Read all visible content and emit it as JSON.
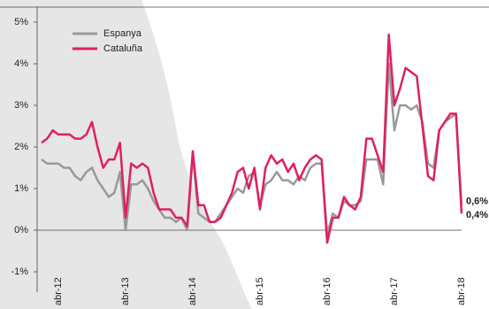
{
  "chart_data": {
    "type": "line",
    "categories": [
      null,
      null,
      null,
      "abr-12",
      null,
      null,
      null,
      null,
      null,
      null,
      null,
      null,
      null,
      null,
      null,
      "abr-13",
      null,
      null,
      null,
      null,
      null,
      null,
      null,
      null,
      null,
      null,
      null,
      "abr-14",
      null,
      null,
      null,
      null,
      null,
      null,
      null,
      null,
      null,
      null,
      null,
      "abr-15",
      null,
      null,
      null,
      null,
      null,
      null,
      null,
      null,
      null,
      null,
      null,
      "abr-16",
      null,
      null,
      null,
      null,
      null,
      null,
      null,
      null,
      null,
      null,
      null,
      "abr-17",
      null,
      null,
      null,
      null,
      null,
      null,
      null,
      null,
      null,
      null,
      null,
      "abr-18"
    ],
    "series": [
      {
        "name": "Espanya",
        "color": "#999999",
        "values": [
          1.7,
          1.6,
          1.6,
          1.6,
          1.5,
          1.5,
          1.3,
          1.2,
          1.4,
          1.5,
          1.2,
          1.0,
          0.8,
          0.9,
          1.4,
          0.0,
          1.1,
          1.1,
          1.2,
          1.0,
          0.7,
          0.5,
          0.3,
          0.3,
          0.2,
          0.3,
          0.0,
          1.8,
          0.4,
          0.3,
          0.2,
          0.2,
          0.4,
          0.6,
          0.8,
          1.0,
          0.9,
          1.3,
          1.4,
          0.6,
          1.1,
          1.2,
          1.4,
          1.2,
          1.2,
          1.1,
          1.3,
          1.2,
          1.5,
          1.6,
          1.6,
          -0.1,
          0.4,
          0.3,
          0.7,
          0.6,
          0.6,
          0.7,
          1.7,
          1.7,
          1.7,
          1.1,
          4.0,
          2.4,
          3.0,
          3.0,
          2.9,
          3.0,
          2.6,
          1.6,
          1.5,
          2.4,
          2.6,
          2.7,
          2.8,
          0.6
        ],
        "value_labels": [
          null,
          null,
          null,
          null,
          null,
          null,
          null,
          null,
          null,
          null,
          null,
          null,
          null,
          null,
          null,
          null,
          null,
          null,
          null,
          null,
          null,
          null,
          null,
          null,
          null,
          null,
          null,
          null,
          null,
          null,
          null,
          null,
          null,
          null,
          null,
          null,
          null,
          null,
          null,
          null,
          null,
          null,
          null,
          null,
          null,
          null,
          null,
          null,
          null,
          null,
          null,
          null,
          null,
          null,
          null,
          null,
          null,
          null,
          null,
          null,
          null,
          null,
          null,
          null,
          null,
          null,
          null,
          null,
          null,
          null,
          null,
          null,
          null,
          null,
          null,
          "0,6%"
        ]
      },
      {
        "name": "Cataluña",
        "color": "#e0205e",
        "values": [
          2.1,
          2.2,
          2.4,
          2.3,
          2.3,
          2.3,
          2.2,
          2.2,
          2.3,
          2.6,
          2.0,
          1.5,
          1.7,
          1.7,
          2.1,
          0.3,
          1.6,
          1.5,
          1.6,
          1.5,
          0.9,
          0.5,
          0.5,
          0.5,
          0.3,
          0.3,
          0.1,
          1.9,
          0.6,
          0.6,
          0.2,
          0.2,
          0.3,
          0.6,
          0.9,
          1.4,
          1.5,
          1.0,
          1.5,
          0.5,
          1.5,
          1.8,
          1.6,
          1.7,
          1.4,
          1.6,
          1.2,
          1.5,
          1.7,
          1.8,
          1.7,
          -0.3,
          0.3,
          0.3,
          0.8,
          0.6,
          0.5,
          0.8,
          2.2,
          2.2,
          1.8,
          1.4,
          4.7,
          3.0,
          3.4,
          3.9,
          3.8,
          3.7,
          2.5,
          1.3,
          1.2,
          2.4,
          2.6,
          2.8,
          2.8,
          0.4
        ],
        "value_labels": [
          null,
          null,
          null,
          null,
          null,
          null,
          null,
          null,
          null,
          null,
          null,
          null,
          null,
          null,
          null,
          null,
          null,
          null,
          null,
          null,
          null,
          null,
          null,
          null,
          null,
          null,
          null,
          null,
          null,
          null,
          null,
          null,
          null,
          null,
          null,
          null,
          null,
          null,
          null,
          null,
          null,
          null,
          null,
          null,
          null,
          null,
          null,
          null,
          null,
          null,
          null,
          null,
          null,
          null,
          null,
          null,
          null,
          null,
          null,
          null,
          null,
          null,
          null,
          null,
          null,
          null,
          null,
          null,
          null,
          null,
          null,
          null,
          null,
          null,
          null,
          "0,4%"
        ]
      }
    ],
    "ylim": [
      -1,
      5
    ],
    "yticks": [
      {
        "value": -1,
        "label": "-1%"
      },
      {
        "value": 0,
        "label": "0%"
      },
      {
        "value": 1,
        "label": "1%"
      },
      {
        "value": 2,
        "label": "2%"
      },
      {
        "value": 3,
        "label": "3%"
      },
      {
        "value": 4,
        "label": "4%"
      },
      {
        "value": 5,
        "label": "5%"
      }
    ],
    "legend": "top-left"
  }
}
